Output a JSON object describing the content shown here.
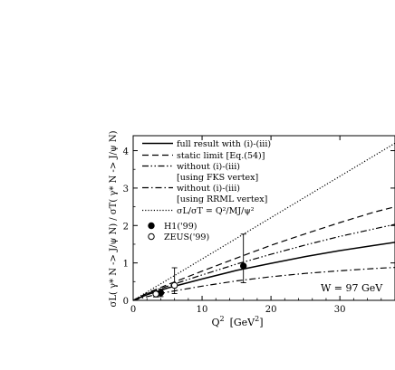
{
  "chart_data": {
    "type": "line",
    "xlabel": "Q",
    "xlabel_sup": "2",
    "xlabel_unit": "[GeV",
    "xlabel_unit_sup": "2",
    "xlabel_unit_close": "]",
    "ylabel": "σL( γ* N -> J/ψ N) / σT( γ* N -> J/ψ N)",
    "xlim": [
      0,
      38
    ],
    "ylim": [
      0,
      4.4
    ],
    "x_ticks": [
      0,
      10,
      20,
      30
    ],
    "y_ticks": [
      0,
      1,
      2,
      3,
      4
    ],
    "annotation": "W = 97 GeV",
    "legend_placement": "top-left",
    "legend": [
      {
        "label": "full result with (i)-(iii)",
        "style": "solid"
      },
      {
        "label": "static limit [Eq.(54)]",
        "style": "dashed"
      },
      {
        "label": "without (i)-(iii)",
        "style": "dash-dot-dot"
      },
      {
        "label": "[using FKS vertex]",
        "style": "none"
      },
      {
        "label": "without (i)-(iii)",
        "style": "dash-dot"
      },
      {
        "label": "[using RRML vertex]",
        "style": "none"
      },
      {
        "label": "σL/σT = Q²/MJ/ψ²",
        "style": "dotted"
      },
      {
        "label": "H1('99)",
        "style": "filled-circle"
      },
      {
        "label": "ZEUS('99)",
        "style": "open-circle"
      }
    ],
    "series": [
      {
        "style": "dotted",
        "x": [
          0,
          38
        ],
        "y": [
          0,
          4.2
        ]
      },
      {
        "style": "dashed",
        "x": [
          0,
          2,
          5,
          10,
          15,
          20,
          25,
          30,
          35,
          38
        ],
        "y": [
          0,
          0.19,
          0.42,
          0.78,
          1.13,
          1.47,
          1.78,
          2.08,
          2.36,
          2.5
        ]
      },
      {
        "style": "dash-dot-dot",
        "x": [
          0,
          2,
          5,
          10,
          15,
          20,
          25,
          30,
          35,
          38
        ],
        "y": [
          0,
          0.18,
          0.38,
          0.68,
          0.97,
          1.23,
          1.48,
          1.71,
          1.91,
          2.03
        ]
      },
      {
        "style": "solid",
        "x": [
          0,
          2,
          5,
          10,
          15,
          20,
          25,
          30,
          35,
          38
        ],
        "y": [
          0,
          0.15,
          0.33,
          0.57,
          0.8,
          0.99,
          1.17,
          1.33,
          1.47,
          1.55
        ]
      },
      {
        "style": "dash-dot",
        "x": [
          0,
          2,
          5,
          10,
          15,
          20,
          25,
          30,
          35,
          38
        ],
        "y": [
          0,
          0.1,
          0.22,
          0.38,
          0.52,
          0.63,
          0.72,
          0.79,
          0.85,
          0.88
        ]
      }
    ],
    "points": [
      {
        "name": "H1('99)",
        "marker": "filled",
        "x": 4.0,
        "y": 0.2,
        "err_lo": 0.1,
        "err_hi": 0.1
      },
      {
        "name": "H1('99)",
        "marker": "filled",
        "x": 16.0,
        "y": 0.92,
        "err_lo": 0.45,
        "err_hi": 0.85
      },
      {
        "name": "ZEUS('99)",
        "marker": "open",
        "x": 3.3,
        "y": 0.17,
        "err_lo": 0.08,
        "err_hi": 0.08
      },
      {
        "name": "ZEUS('99)",
        "marker": "open",
        "x": 6.0,
        "y": 0.4,
        "err_lo": 0.22,
        "err_hi": 0.47
      }
    ]
  }
}
